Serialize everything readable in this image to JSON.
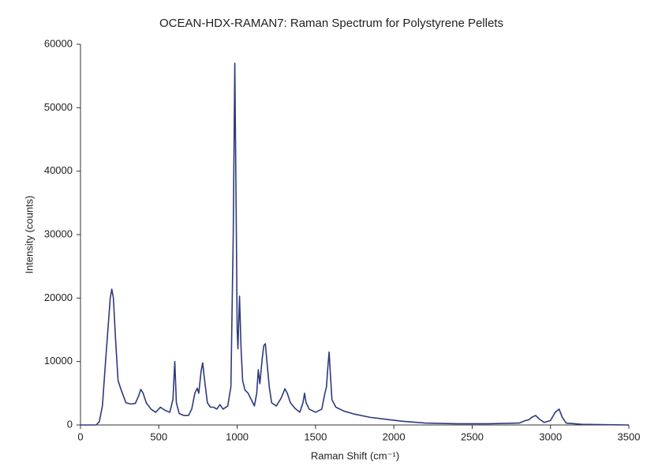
{
  "chart_data": {
    "type": "line",
    "title": "OCEAN-HDX-RAMAN7: Raman Spectrum for Polystyrene Pellets",
    "x_label": "Raman Shift (cm⁻¹)",
    "y_label": "Intensity (counts)",
    "color": "#2e3a7c",
    "x": [
      0,
      100,
      120,
      140,
      160,
      175,
      190,
      200,
      210,
      225,
      240,
      260,
      290,
      320,
      350,
      370,
      385,
      400,
      420,
      450,
      480,
      510,
      540,
      570,
      590,
      602,
      612,
      630,
      660,
      690,
      710,
      730,
      745,
      755,
      770,
      780,
      790,
      810,
      830,
      850,
      870,
      890,
      910,
      940,
      960,
      975,
      985,
      995,
      1000,
      1005,
      1015,
      1025,
      1035,
      1050,
      1070,
      1090,
      1110,
      1125,
      1135,
      1145,
      1160,
      1170,
      1180,
      1190,
      1205,
      1220,
      1250,
      1280,
      1305,
      1320,
      1340,
      1370,
      1400,
      1420,
      1430,
      1440,
      1460,
      1500,
      1540,
      1560,
      1570,
      1580,
      1587,
      1595,
      1605,
      1630,
      1680,
      1750,
      1850,
      1950,
      2050,
      2200,
      2400,
      2600,
      2800,
      2840,
      2860,
      2880,
      2905,
      2930,
      2960,
      3000,
      3030,
      3055,
      3075,
      3100,
      3200,
      3500
    ],
    "values": [
      0,
      0,
      500,
      3000,
      10000,
      15000,
      20000,
      21400,
      20000,
      13000,
      7000,
      5500,
      3500,
      3300,
      3400,
      4500,
      5600,
      5000,
      3500,
      2500,
      2000,
      2800,
      2300,
      2000,
      4000,
      10000,
      3500,
      1800,
      1500,
      1500,
      2500,
      5000,
      5800,
      5000,
      8500,
      9800,
      7500,
      3500,
      2800,
      2800,
      2500,
      3200,
      2500,
      3000,
      6000,
      30000,
      57000,
      30000,
      15000,
      12000,
      20300,
      12000,
      7000,
      5500,
      5000,
      4000,
      3000,
      5000,
      8700,
      6500,
      10500,
      12500,
      12800,
      10000,
      6000,
      3500,
      3000,
      4200,
      5700,
      5000,
      3500,
      2600,
      2000,
      3500,
      5000,
      3500,
      2500,
      2000,
      2500,
      5000,
      6000,
      9500,
      11500,
      8000,
      4000,
      2800,
      2200,
      1700,
      1200,
      900,
      600,
      300,
      200,
      200,
      300,
      700,
      800,
      1200,
      1500,
      900,
      400,
      700,
      2000,
      2500,
      1200,
      300,
      100,
      0
    ],
    "xlim": [
      0,
      3500
    ],
    "xticks": [
      0,
      500,
      1000,
      1500,
      2000,
      2500,
      3000,
      3500
    ],
    "ylim": [
      0,
      60000
    ],
    "yticks": [
      0,
      10000,
      20000,
      30000,
      40000,
      50000,
      60000
    ]
  }
}
